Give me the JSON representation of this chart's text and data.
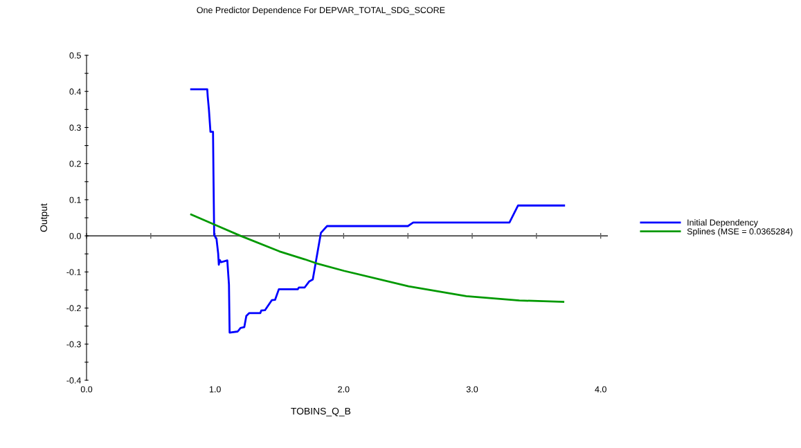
{
  "chart_data": {
    "type": "line",
    "title": "One Predictor Dependence For DEPVAR_TOTAL_SDG_SCORE",
    "xlabel": "TOBINS_Q_B",
    "ylabel": "Output",
    "series": [
      {
        "name": "Initial Dependency",
        "color": "#0000ff",
        "x": [
          0.814,
          0.939,
          0.943,
          0.952,
          0.964,
          0.984,
          0.988,
          0.993,
          1.011,
          1.024,
          1.029,
          1.036,
          1.047,
          1.095,
          1.108,
          1.113,
          1.176,
          1.198,
          1.227,
          1.243,
          1.266,
          1.352,
          1.359,
          1.388,
          1.442,
          1.467,
          1.496,
          1.643,
          1.652,
          1.697,
          1.733,
          1.76,
          1.823,
          1.871,
          2.5,
          2.541,
          3.29,
          3.357,
          3.715
        ],
        "values": [
          0.406,
          0.406,
          0.385,
          0.35,
          0.288,
          0.288,
          0.152,
          0.002,
          -0.008,
          -0.049,
          -0.08,
          -0.067,
          -0.073,
          -0.068,
          -0.135,
          -0.268,
          -0.265,
          -0.255,
          -0.253,
          -0.222,
          -0.214,
          -0.214,
          -0.207,
          -0.206,
          -0.178,
          -0.177,
          -0.148,
          -0.148,
          -0.143,
          -0.143,
          -0.126,
          -0.121,
          0.008,
          0.027,
          0.027,
          0.037,
          0.037,
          0.084,
          0.084
        ]
      },
      {
        "name": "Splines (MSE = 0.0365284)",
        "color": "#009900",
        "x": [
          0.814,
          0.997,
          1.198,
          1.5,
          1.697,
          1.787,
          2.003,
          2.505,
          2.954,
          3.367,
          3.709
        ],
        "values": [
          0.059,
          0.031,
          0.0,
          -0.043,
          -0.065,
          -0.076,
          -0.097,
          -0.14,
          -0.167,
          -0.179,
          -0.183
        ]
      }
    ],
    "xlim": [
      0,
      4.05
    ],
    "ylim": [
      -0.4,
      0.5
    ],
    "xticks": [
      {
        "value": 0,
        "label": "0.0"
      },
      {
        "value": 0.5,
        "label": null
      },
      {
        "value": 1,
        "label": "1.0"
      },
      {
        "value": 1.5,
        "label": null
      },
      {
        "value": 2,
        "label": "2.0"
      },
      {
        "value": 2.5,
        "label": null
      },
      {
        "value": 3,
        "label": "3.0"
      },
      {
        "value": 3.5,
        "label": null
      },
      {
        "value": 4,
        "label": "4.0"
      }
    ],
    "yticks": [
      {
        "value": -0.4,
        "label": "-0.4"
      },
      {
        "value": -0.35,
        "label": null
      },
      {
        "value": -0.3,
        "label": "-0.3"
      },
      {
        "value": -0.25,
        "label": null
      },
      {
        "value": -0.2,
        "label": "-0.2"
      },
      {
        "value": -0.15,
        "label": null
      },
      {
        "value": -0.1,
        "label": "-0.1"
      },
      {
        "value": -0.05,
        "label": null
      },
      {
        "value": 0,
        "label": "0.0"
      },
      {
        "value": 0.05,
        "label": null
      },
      {
        "value": 0.1,
        "label": "0.1"
      },
      {
        "value": 0.15,
        "label": null
      },
      {
        "value": 0.2,
        "label": "0.2"
      },
      {
        "value": 0.25,
        "label": null
      },
      {
        "value": 0.3,
        "label": "0.3"
      },
      {
        "value": 0.35,
        "label": null
      },
      {
        "value": 0.4,
        "label": "0.4"
      },
      {
        "value": 0.45,
        "label": null
      },
      {
        "value": 0.5,
        "label": "0.5"
      }
    ],
    "legend": "right",
    "marker": "none",
    "line_style": "solid"
  }
}
